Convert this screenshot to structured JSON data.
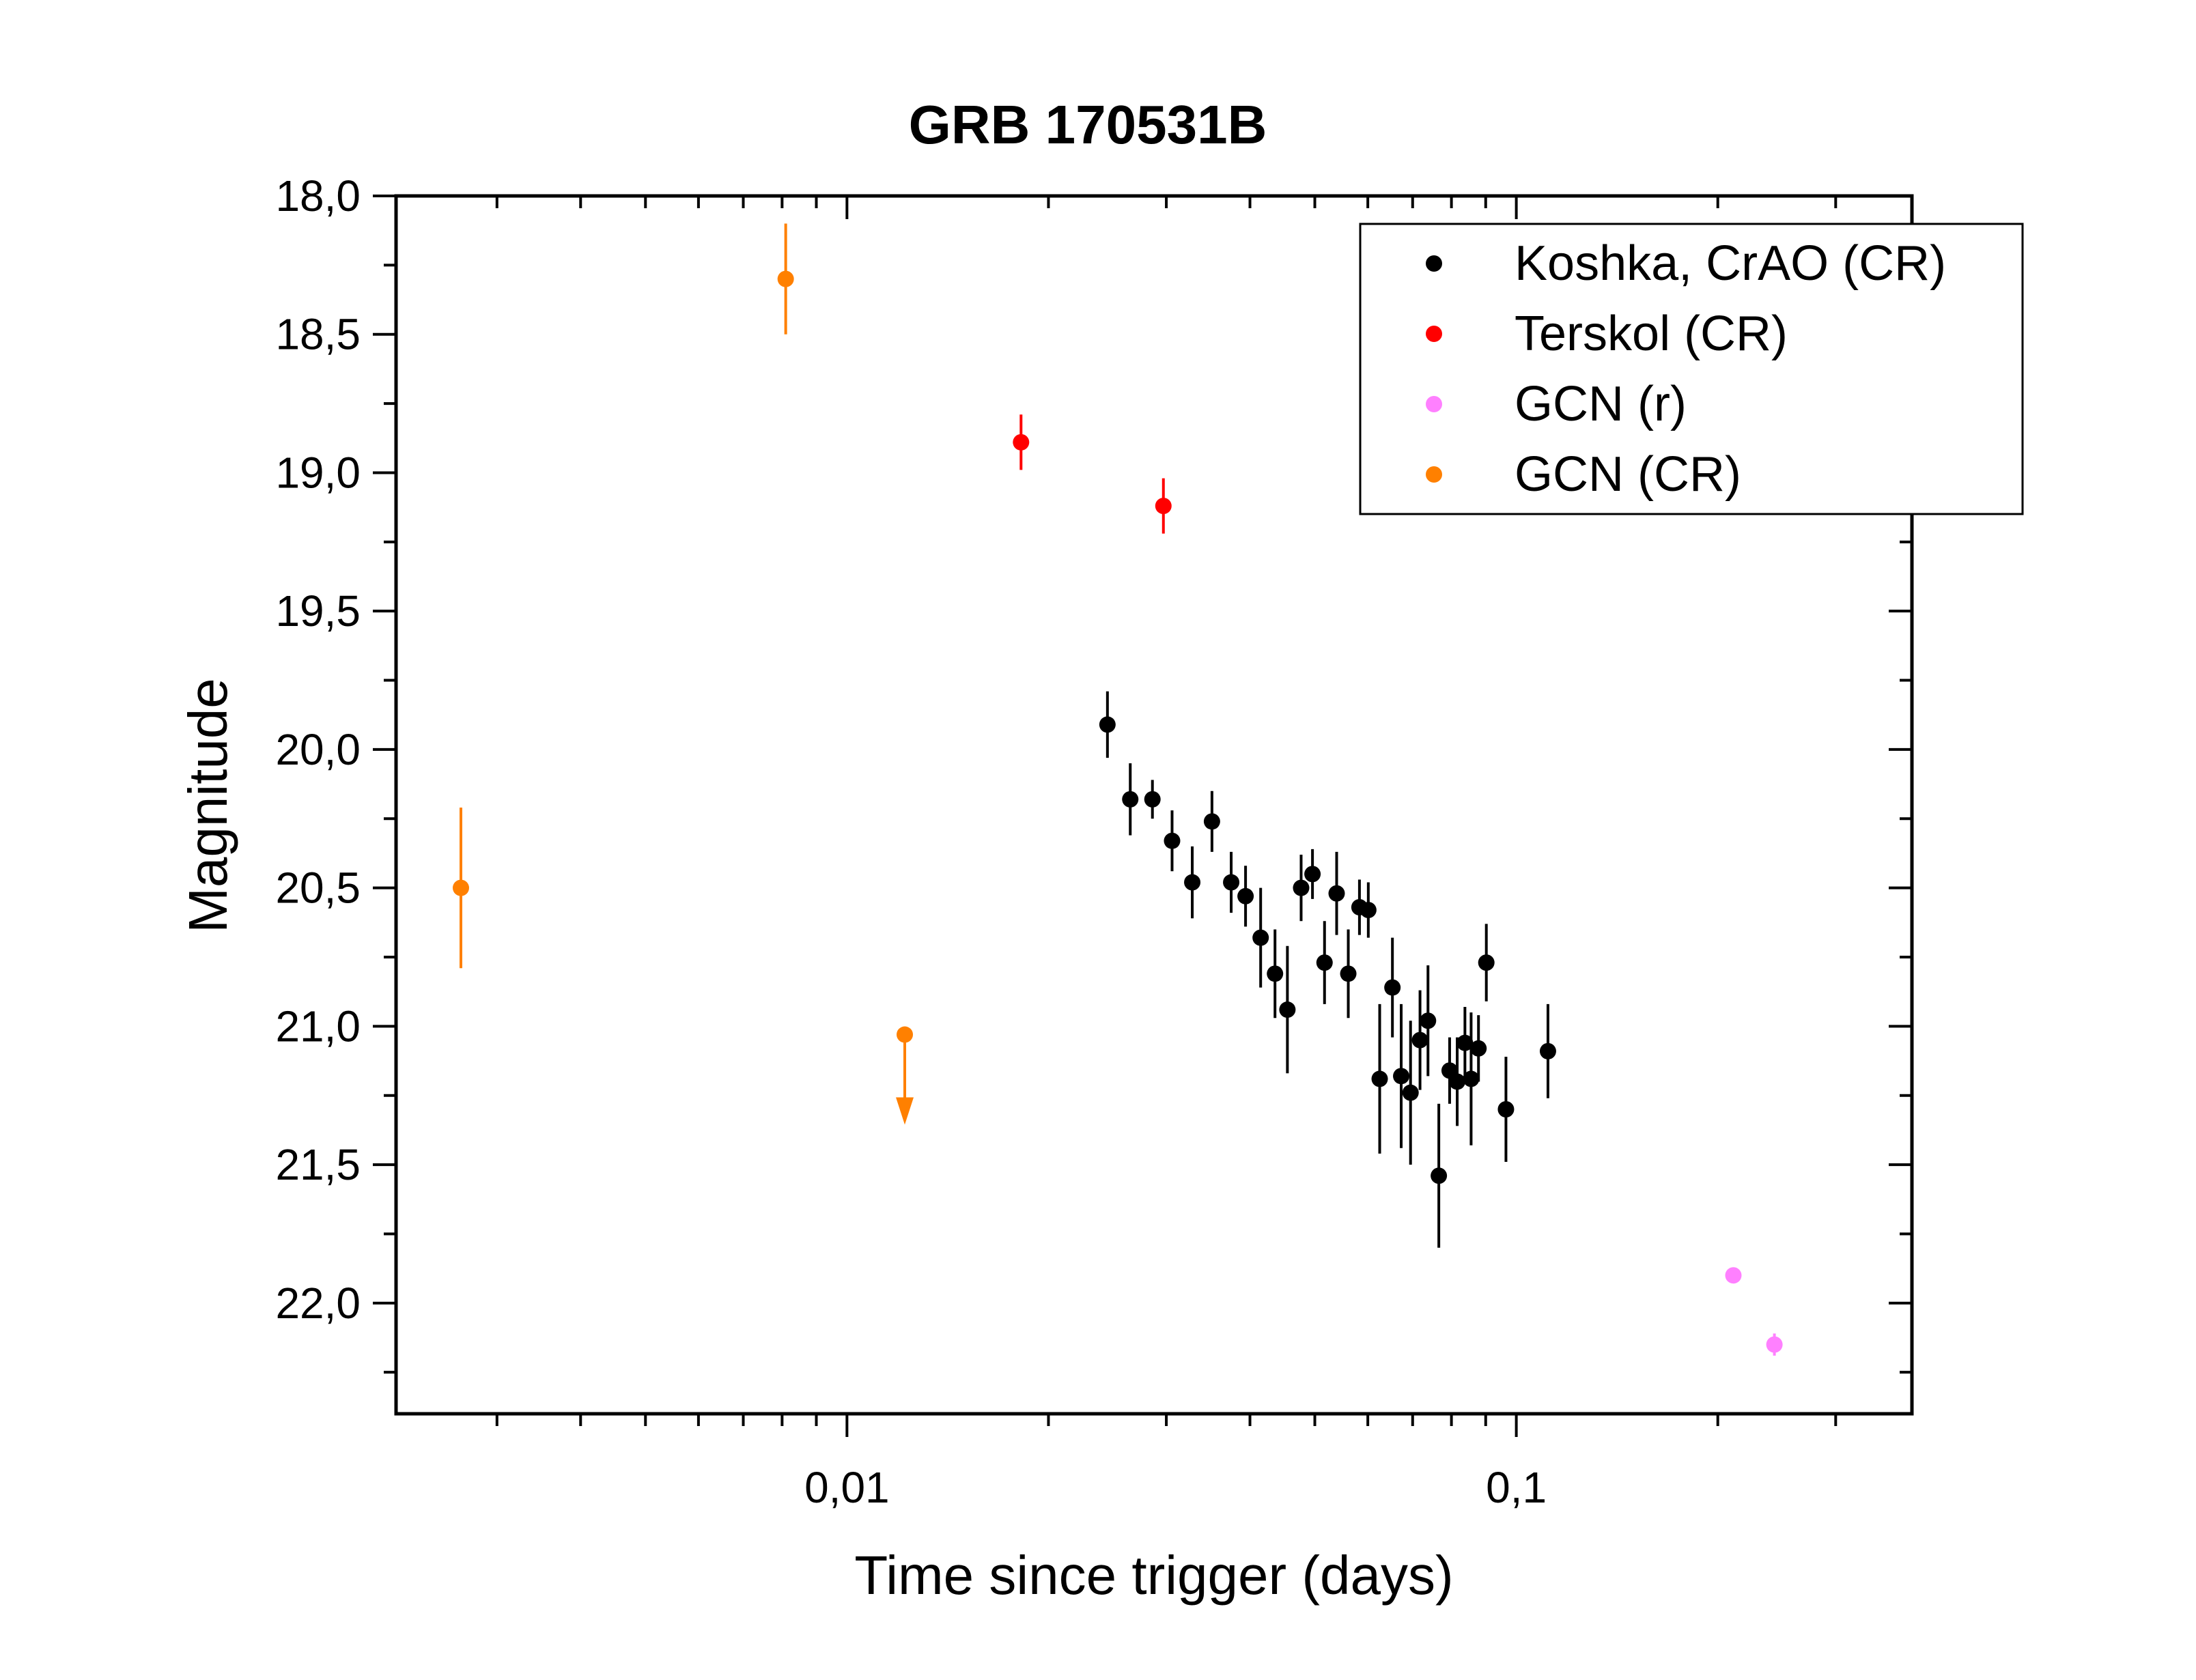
{
  "chart_data": {
    "type": "scatter",
    "title": "GRB 170531B",
    "xlabel": "Time since trigger (days)",
    "ylabel": "Magnitude",
    "x_scale": "log",
    "xlim": [
      0.00212,
      0.39
    ],
    "ylim": [
      18.0,
      22.4
    ],
    "y_inverted": true,
    "x_tick_labels": [
      {
        "value": 0.01,
        "label": "0,01"
      },
      {
        "value": 0.1,
        "label": "0,1"
      }
    ],
    "y_tick_labels": [
      {
        "value": 18.0,
        "label": "18,0"
      },
      {
        "value": 18.5,
        "label": "18,5"
      },
      {
        "value": 19.0,
        "label": "19,0"
      },
      {
        "value": 19.5,
        "label": "19,5"
      },
      {
        "value": 20.0,
        "label": "20,0"
      },
      {
        "value": 20.5,
        "label": "20,5"
      },
      {
        "value": 21.0,
        "label": "21,0"
      },
      {
        "value": 21.5,
        "label": "21,5"
      },
      {
        "value": 22.0,
        "label": "22,0"
      }
    ],
    "legend_position": "top-right",
    "series": [
      {
        "name": "Koshka, CrAO (CR)",
        "color": "#000000",
        "points": [
          {
            "x": 0.0245,
            "y": 19.91,
            "err": 0.12
          },
          {
            "x": 0.0265,
            "y": 20.18,
            "err": 0.13
          },
          {
            "x": 0.0286,
            "y": 20.18,
            "err": 0.07
          },
          {
            "x": 0.0306,
            "y": 20.33,
            "err": 0.11
          },
          {
            "x": 0.0328,
            "y": 20.48,
            "err": 0.13
          },
          {
            "x": 0.0351,
            "y": 20.26,
            "err": 0.11
          },
          {
            "x": 0.0375,
            "y": 20.48,
            "err": 0.11
          },
          {
            "x": 0.0394,
            "y": 20.53,
            "err": 0.11
          },
          {
            "x": 0.0415,
            "y": 20.68,
            "err": 0.18
          },
          {
            "x": 0.0436,
            "y": 20.81,
            "err": 0.16
          },
          {
            "x": 0.0455,
            "y": 20.94,
            "err": 0.23
          },
          {
            "x": 0.0477,
            "y": 20.5,
            "err": 0.12
          },
          {
            "x": 0.0496,
            "y": 20.45,
            "err": 0.09
          },
          {
            "x": 0.0517,
            "y": 20.77,
            "err": 0.15
          },
          {
            "x": 0.0539,
            "y": 20.52,
            "err": 0.15
          },
          {
            "x": 0.0561,
            "y": 20.81,
            "err": 0.16
          },
          {
            "x": 0.0583,
            "y": 20.57,
            "err": 0.1
          },
          {
            "x": 0.0601,
            "y": 20.58,
            "err": 0.1
          },
          {
            "x": 0.0625,
            "y": 21.19,
            "err": 0.27
          },
          {
            "x": 0.0653,
            "y": 20.86,
            "err": 0.18
          },
          {
            "x": 0.0673,
            "y": 21.18,
            "err": 0.26
          },
          {
            "x": 0.0695,
            "y": 21.24,
            "err": 0.26
          },
          {
            "x": 0.0718,
            "y": 21.05,
            "err": 0.18
          },
          {
            "x": 0.0738,
            "y": 20.98,
            "err": 0.2
          },
          {
            "x": 0.0766,
            "y": 21.54,
            "err": 0.26
          },
          {
            "x": 0.0795,
            "y": 21.16,
            "err": 0.12
          },
          {
            "x": 0.0816,
            "y": 21.2,
            "err": 0.16
          },
          {
            "x": 0.0838,
            "y": 21.06,
            "err": 0.13
          },
          {
            "x": 0.0856,
            "y": 21.19,
            "err": 0.24
          },
          {
            "x": 0.0878,
            "y": 21.08,
            "err": 0.12
          },
          {
            "x": 0.0902,
            "y": 20.77,
            "err": 0.14
          },
          {
            "x": 0.0965,
            "y": 21.3,
            "err": 0.19
          },
          {
            "x": 0.1115,
            "y": 21.09,
            "err": 0.17
          }
        ]
      },
      {
        "name": "Terskol (CR)",
        "color": "#ff0000",
        "points": [
          {
            "x": 0.0182,
            "y": 18.89,
            "err": 0.1
          },
          {
            "x": 0.0297,
            "y": 19.12,
            "err": 0.1
          }
        ]
      },
      {
        "name": "GCN (r)",
        "color": "#ff80ff",
        "points": [
          {
            "x": 0.211,
            "y": 21.9,
            "err": 0.0
          },
          {
            "x": 0.243,
            "y": 22.15,
            "err": 0.04
          }
        ]
      },
      {
        "name": "GCN (CR)",
        "color": "#ff8000",
        "points": [
          {
            "x": 0.00265,
            "y": 20.5,
            "err": 0.29
          },
          {
            "x": 0.0081,
            "y": 18.3,
            "err": 0.2
          }
        ],
        "upper_limits": [
          {
            "x": 0.0122,
            "y": 21.03
          }
        ]
      }
    ]
  }
}
